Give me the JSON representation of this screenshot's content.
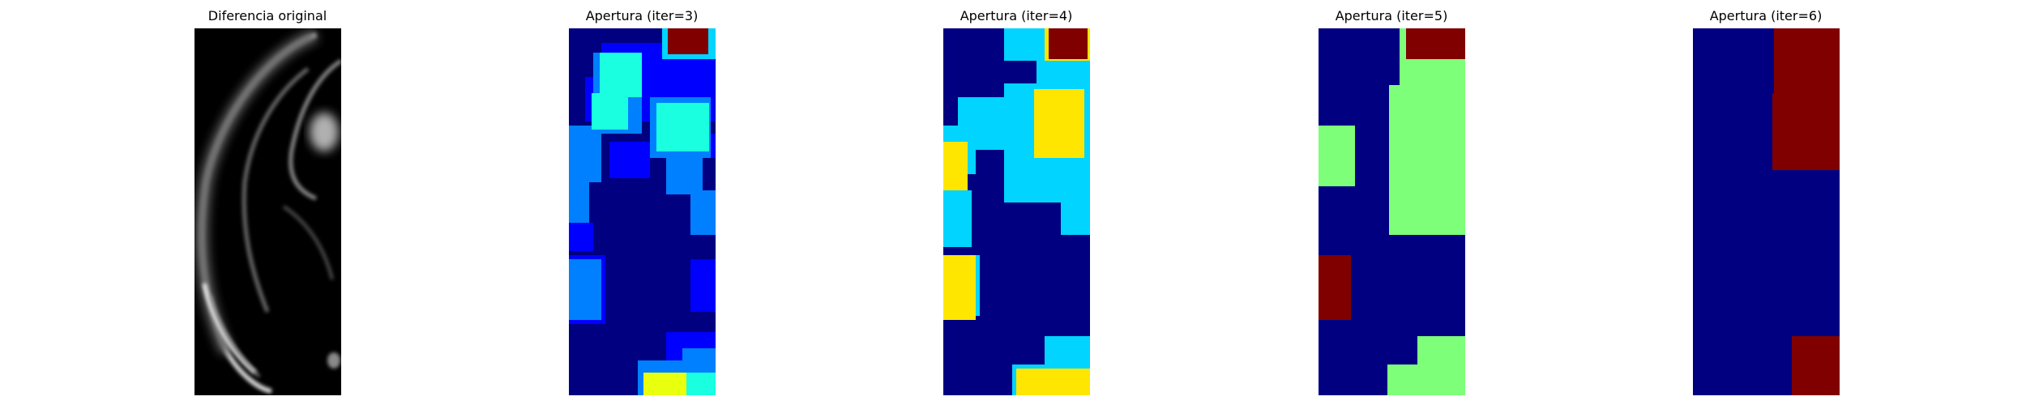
{
  "figure": {
    "background": "#ffffff"
  },
  "chart_data": [
    {
      "type": "heatmap",
      "title": "Diferencia original",
      "colormap": "gray",
      "axes": "off",
      "content": "grayscale intensity image of a curved bright outline on black background"
    },
    {
      "type": "heatmap",
      "title": "Apertura (iter=3)",
      "colormap": "jet",
      "axes": "off",
      "palette": [
        "#000080",
        "#0000ff",
        "#0080ff",
        "#00d4ff",
        "#1affe0",
        "#e8ff0e",
        "#800000"
      ]
    },
    {
      "type": "heatmap",
      "title": "Apertura (iter=4)",
      "colormap": "jet",
      "axes": "off",
      "palette": [
        "#000080",
        "#00d4ff",
        "#ffe600",
        "#800000"
      ]
    },
    {
      "type": "heatmap",
      "title": "Apertura (iter=5)",
      "colormap": "jet",
      "axes": "off",
      "palette": [
        "#000080",
        "#7dff7a",
        "#800000"
      ]
    },
    {
      "type": "heatmap",
      "title": "Apertura (iter=6)",
      "colormap": "jet",
      "axes": "off",
      "palette": [
        "#000080",
        "#800000"
      ]
    }
  ]
}
